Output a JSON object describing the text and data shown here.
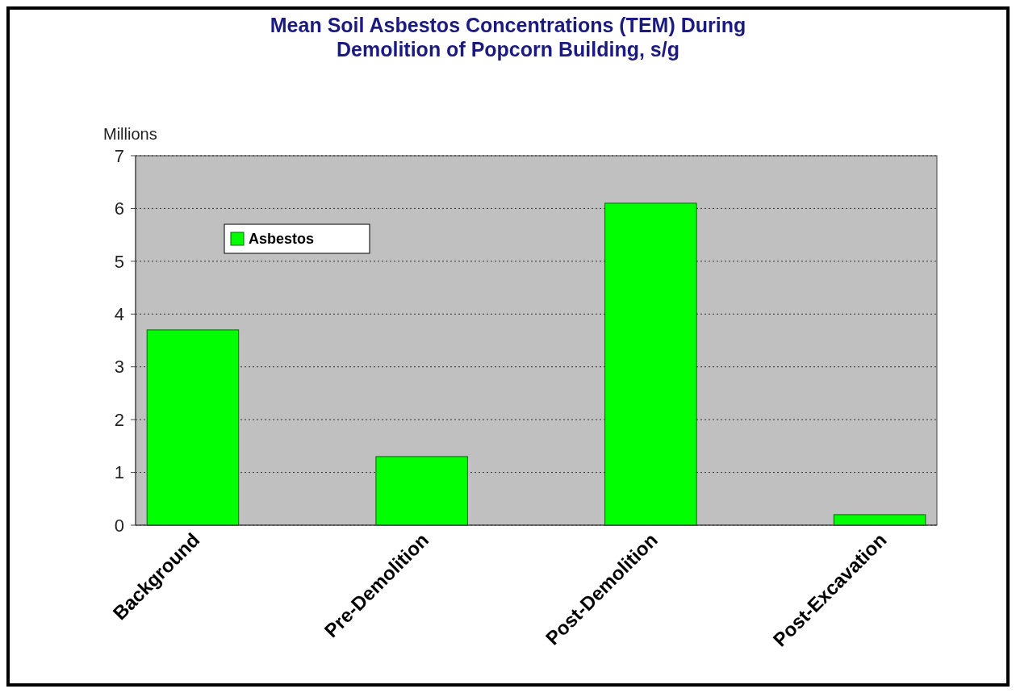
{
  "chart_data": {
    "type": "bar",
    "title": "Mean Soil Asbestos Concentrations (TEM) During\nDemolition of Popcorn Building, s/g",
    "ylabel": "Millions",
    "categories": [
      "Background",
      "Pre-Demolition",
      "Post-Demolition",
      "Post-Excavation"
    ],
    "series": [
      {
        "name": "Asbestos",
        "color": "#00ff00",
        "values": [
          3.7,
          1.3,
          6.1,
          0.2
        ]
      }
    ],
    "ylim": [
      0,
      7
    ],
    "yticks": [
      0,
      1,
      2,
      3,
      4,
      5,
      6,
      7
    ],
    "grid": "y",
    "legend": "top left"
  }
}
